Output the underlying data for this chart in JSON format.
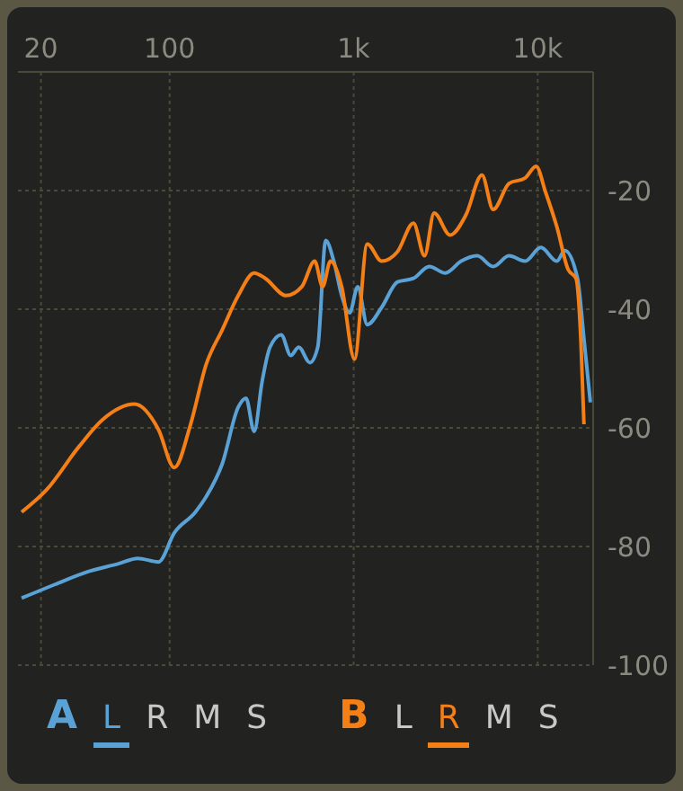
{
  "chart_data": {
    "type": "line",
    "log": "x",
    "xlim": [
      15,
      20000
    ],
    "xticks": [
      20,
      100,
      {
        "value": 1000,
        "label": "1k"
      },
      {
        "value": 10000,
        "label": "10k"
      }
    ],
    "ylim": [
      -100,
      0
    ],
    "yticks": [
      -20,
      -40,
      -60,
      -80,
      -100
    ],
    "grid": true,
    "legend": "bottom",
    "marker": "none",
    "line_style": "solid",
    "annotations": [
      "L",
      "R",
      "M",
      "S",
      "L",
      "R",
      "M",
      "S"
    ],
    "series": [
      {
        "name": "A",
        "color": "#5aa2d6",
        "x": [
          15.7,
          23.8,
          35.5,
          52.8,
          67.1,
          87,
          106,
          138,
          158,
          193,
          236,
          260,
          288,
          318,
          351,
          404,
          455,
          503,
          578,
          638,
          705,
          780,
          861,
          951,
          1052,
          1186,
          1419,
          1730,
          2113,
          2576,
          3148,
          3837,
          4688,
          5728,
          6982,
          8531,
          10400,
          12700,
          14030,
          16450,
          17830,
          19320
        ],
        "values": [
          -88.7,
          -86.4,
          -84.3,
          -82.9,
          -82,
          -82.6,
          -77.7,
          -74.2,
          -71.6,
          -66.1,
          -56.5,
          -55,
          -60.6,
          -52.2,
          -46.4,
          -44.3,
          -47.8,
          -46.4,
          -49,
          -46.4,
          -28.4,
          -31.9,
          -37.7,
          -40.6,
          -36.2,
          -42.6,
          -39.7,
          -35.4,
          -34.8,
          -32.8,
          -33.9,
          -31.9,
          -31,
          -32.8,
          -31,
          -31.9,
          -29.6,
          -31.9,
          -30.1,
          -34.8,
          -45,
          -55.7
        ]
      },
      {
        "name": "B",
        "color": "#f57f17",
        "x": [
          15.7,
          21.5,
          32.1,
          43.3,
          64.5,
          87,
          106,
          130,
          158,
          193,
          236,
          288,
          331,
          429,
          523,
          614,
          678,
          748,
          861,
          1010,
          1186,
          1419,
          1730,
          2113,
          2427,
          2736,
          3342,
          4074,
          4977,
          5728,
          6982,
          8531,
          9795,
          11040,
          12700,
          14620,
          16140,
          17140,
          17830
        ],
        "values": [
          -74.2,
          -70.4,
          -63.2,
          -58.6,
          -56,
          -60.3,
          -66.7,
          -59.4,
          -49.3,
          -43.5,
          -37.7,
          -33.9,
          -34.8,
          -37.7,
          -36.2,
          -31.9,
          -36.2,
          -31.9,
          -36.2,
          -48.4,
          -29,
          -31.9,
          -30.3,
          -25.5,
          -31,
          -23.8,
          -27.5,
          -24.1,
          -17.4,
          -23.2,
          -18.8,
          -17.9,
          -15.9,
          -20.3,
          -26.1,
          -33.3,
          -34.8,
          -45,
          -59.4
        ]
      }
    ]
  }
}
